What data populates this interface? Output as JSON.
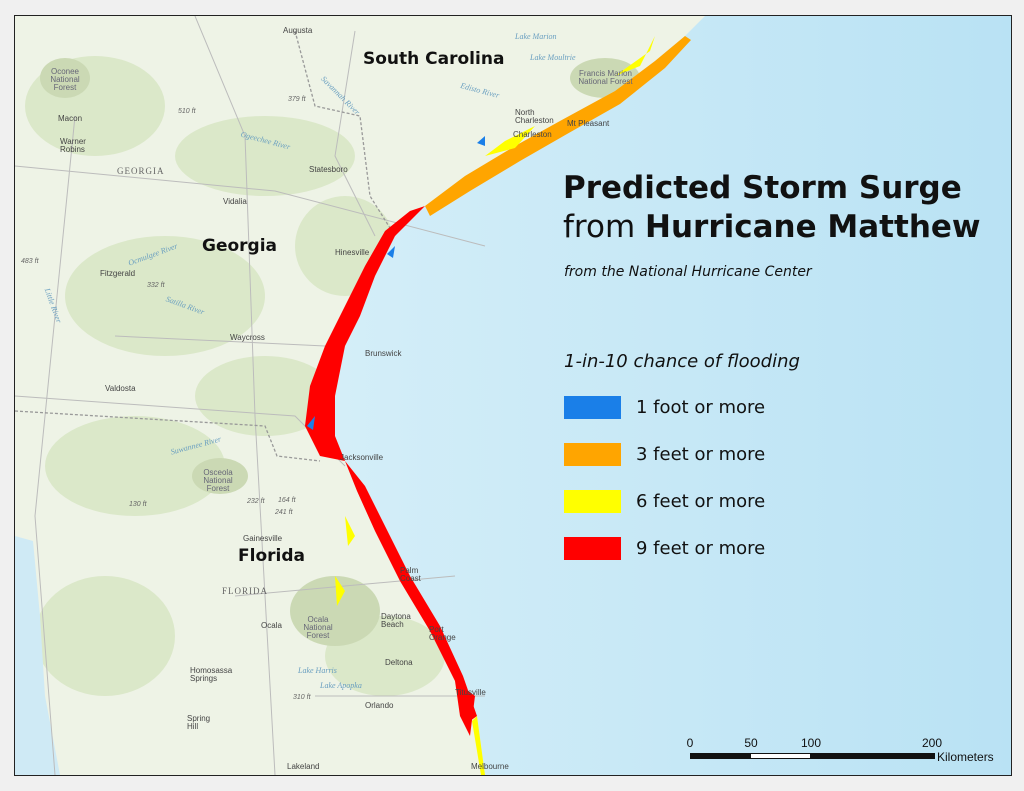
{
  "title": {
    "line1": "Predicted Storm Surge",
    "line2_prefix": "from",
    "line2_bold": "Hurricane Matthew",
    "subtitle": "from the National Hurricane Center"
  },
  "legend": {
    "title": "1-in-10 chance of flooding",
    "items": [
      {
        "label": "1 foot or more",
        "color": "#1a7fe8"
      },
      {
        "label": "3 feet or more",
        "color": "#ffa500"
      },
      {
        "label": "6 feet or more",
        "color": "#ffff00"
      },
      {
        "label": "9 feet or more",
        "color": "#ff0000"
      }
    ]
  },
  "scale_bar": {
    "ticks": [
      "0",
      "50",
      "100",
      "200"
    ],
    "units": "Kilometers"
  },
  "map": {
    "states": [
      "South Carolina",
      "Georgia",
      "Florida"
    ],
    "state_caps": [
      "GEORGIA",
      "FLORIDA"
    ],
    "cities": [
      "Augusta",
      "Macon",
      "Warner Robins",
      "Statesboro",
      "Vidalia",
      "Fitzgerald",
      "Waycross",
      "Valdosta",
      "Hinesville",
      "Brunswick",
      "Jacksonville",
      "North Charleston",
      "Charleston",
      "Mt Pleasant",
      "Palm Coast",
      "Daytona Beach",
      "Port Orange",
      "Deltona",
      "Ocala",
      "Homosassa Springs",
      "Spring Hill",
      "Orlando",
      "Titusville",
      "Melbourne",
      "Lakeland",
      "Gainesville"
    ],
    "forests": [
      "Oconee National Forest",
      "Francis Marion National Forest",
      "Osceola National Forest",
      "Ocala National Forest"
    ],
    "water": [
      "Lake Marion",
      "Lake Moultrie",
      "Edisto River",
      "Savannah River",
      "Ogeechee River",
      "Ocmulgee River",
      "Satilla River",
      "Suwannee River",
      "Little River",
      "Lake Harris",
      "Lake Apopka"
    ],
    "elevations": [
      "510 ft",
      "379 ft",
      "483 ft",
      "332 ft",
      "232 ft",
      "164 ft",
      "241 ft",
      "130 ft",
      "310 ft"
    ],
    "colors": {
      "land": "#eef3e6",
      "ocean": "#cfeaf5",
      "forest": "#cbd9b4",
      "urban": "#d9d6c8"
    }
  }
}
